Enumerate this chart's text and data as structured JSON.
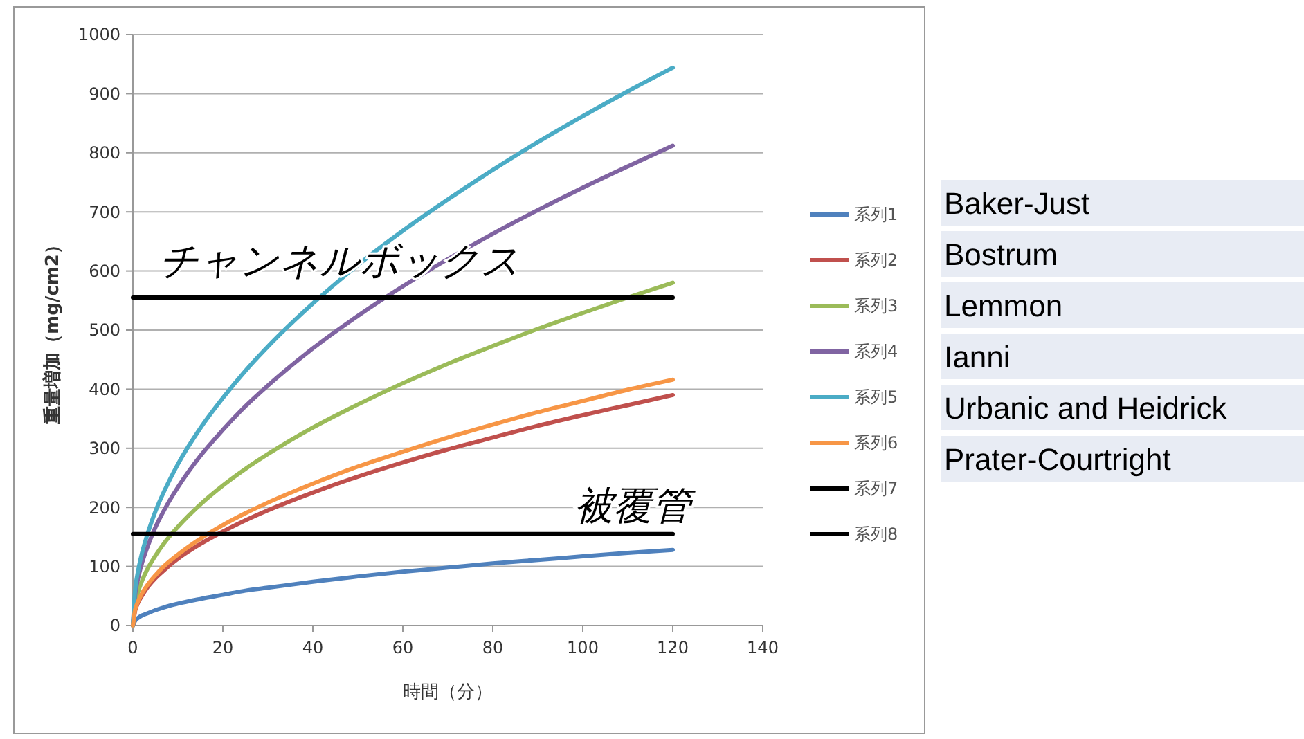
{
  "chart_data": {
    "type": "line",
    "xlabel": "時間（分）",
    "ylabel": "重量増加（mg/cm2）",
    "x": [
      0,
      0.5,
      1,
      2,
      3,
      5,
      7,
      10,
      15,
      20,
      25,
      30,
      40,
      50,
      60,
      70,
      80,
      90,
      100,
      110,
      120
    ],
    "series": [
      {
        "name": "系列1",
        "color": "#4f81bd",
        "values": [
          0,
          8,
          12,
          17,
          20,
          26,
          31,
          37,
          45,
          52,
          59,
          64,
          74,
          83,
          91,
          98,
          105,
          111,
          117,
          123,
          128
        ]
      },
      {
        "name": "系列2",
        "color": "#c0504d",
        "values": [
          0,
          25,
          36,
          50,
          62,
          80,
          94,
          113,
          138,
          159,
          178,
          195,
          225,
          252,
          276,
          298,
          318,
          338,
          356,
          373,
          390
        ]
      },
      {
        "name": "系列3",
        "color": "#9bbb59",
        "values": [
          0,
          37,
          53,
          75,
          92,
          118,
          140,
          167,
          205,
          237,
          265,
          290,
          335,
          374,
          410,
          443,
          473,
          502,
          529,
          555,
          580
        ]
      },
      {
        "name": "系列4",
        "color": "#8064a2",
        "values": [
          0,
          52,
          74,
          105,
          128,
          166,
          196,
          234,
          287,
          331,
          371,
          406,
          469,
          524,
          574,
          620,
          663,
          703,
          741,
          777,
          812
        ]
      },
      {
        "name": "系列5",
        "color": "#4bacc6",
        "values": [
          0,
          61,
          86,
          122,
          149,
          193,
          228,
          273,
          334,
          385,
          431,
          472,
          545,
          610,
          668,
          721,
          771,
          818,
          862,
          904,
          944
        ]
      },
      {
        "name": "系列6",
        "color": "#f79646",
        "values": [
          0,
          27,
          38,
          54,
          66,
          85,
          101,
          120,
          147,
          170,
          190,
          208,
          240,
          269,
          294,
          318,
          340,
          361,
          380,
          399,
          416
        ]
      },
      {
        "name": "系列7",
        "color": "#000000",
        "values": [
          555,
          555,
          555,
          555,
          555,
          555,
          555,
          555,
          555,
          555,
          555,
          555,
          555,
          555,
          555,
          555,
          555,
          555,
          555,
          555,
          555
        ]
      },
      {
        "name": "系列8",
        "color": "#000000",
        "values": [
          155,
          155,
          155,
          155,
          155,
          155,
          155,
          155,
          155,
          155,
          155,
          155,
          155,
          155,
          155,
          155,
          155,
          155,
          155,
          155,
          155
        ]
      }
    ],
    "xlim": [
      0,
      140
    ],
    "xticks": [
      0,
      20,
      40,
      60,
      80,
      100,
      120,
      140
    ],
    "ylim": [
      0,
      1000
    ],
    "yticks": [
      0,
      100,
      200,
      300,
      400,
      500,
      600,
      700,
      800,
      900,
      1000
    ],
    "grid": "y",
    "legend": "right",
    "marker": "none",
    "line_style": "solid",
    "annotations": [
      "チャンネルボックス",
      "被覆管",
      "Baker-Just",
      "Bostrum",
      "Lemmon",
      "Ianni",
      "Urbanic and Heidrick",
      "Prater-Courtright"
    ]
  }
}
